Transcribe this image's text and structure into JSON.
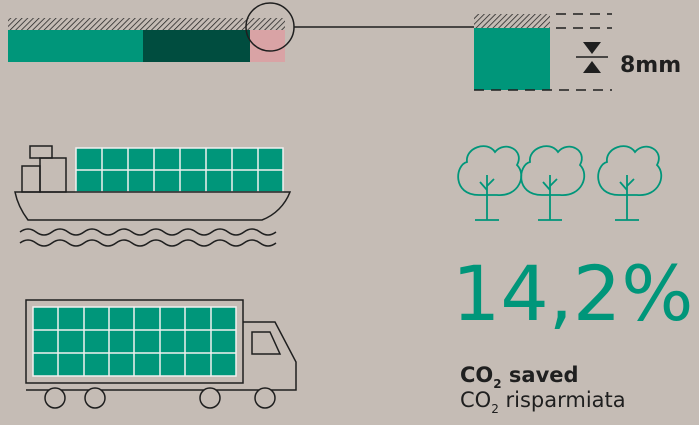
{
  "dimension": "8mm",
  "stat": {
    "value": "14,2%",
    "line1": {
      "formula": "CO",
      "sub": "2",
      "text": " saved"
    },
    "line2": {
      "formula": "CO",
      "sub": "2",
      "text": " risparmiata"
    }
  }
}
